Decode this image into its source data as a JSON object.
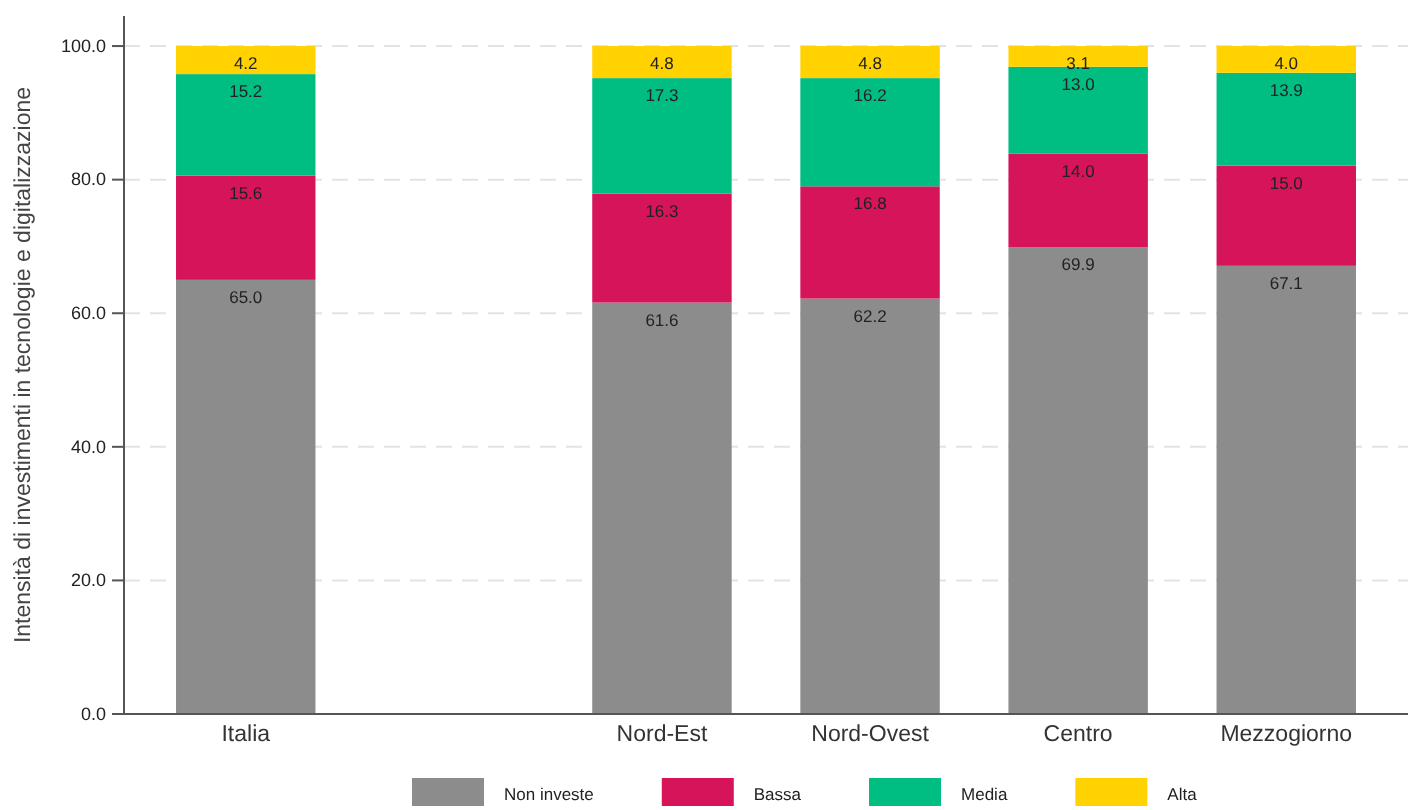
{
  "chart_data": {
    "type": "bar",
    "stacked": true,
    "ylabel": "Intensità di investimenti in tecnologie e digitalizzazione",
    "categories": [
      "Italia",
      null,
      "Nord-Est",
      "Nord-Ovest",
      "Centro",
      "Mezzogiorno"
    ],
    "series": [
      {
        "name": "Non investe",
        "color": "#8c8c8c",
        "values": [
          65.0,
          null,
          61.6,
          62.2,
          69.9,
          67.1
        ],
        "value_labels": [
          "65.0",
          null,
          "61.6",
          "62.2",
          "69.9",
          "67.1"
        ]
      },
      {
        "name": "Bassa",
        "color": "#d6145a",
        "values": [
          15.6,
          null,
          16.3,
          16.8,
          14.0,
          15.0
        ],
        "value_labels": [
          "15.6",
          null,
          "16.3",
          "16.8",
          "14.0",
          "15.0"
        ]
      },
      {
        "name": "Media",
        "color": "#00bd82",
        "values": [
          15.2,
          null,
          17.3,
          16.2,
          13.0,
          13.9
        ],
        "value_labels": [
          "15.2",
          null,
          "17.3",
          "16.2",
          "13.0",
          "13.9"
        ]
      },
      {
        "name": "Alta",
        "color": "#ffd200",
        "values": [
          4.2,
          null,
          4.8,
          4.8,
          3.1,
          4.0
        ],
        "value_labels": [
          "4.2",
          null,
          "4.8",
          "4.8",
          "3.1",
          "4.0"
        ]
      }
    ],
    "ylim": [
      0,
      104.5
    ],
    "yticks": [
      {
        "value": 0,
        "label": "0.0"
      },
      {
        "value": 20,
        "label": "20.0"
      },
      {
        "value": 40,
        "label": "40.0"
      },
      {
        "value": 60,
        "label": "60.0"
      },
      {
        "value": 80,
        "label": "80.0"
      },
      {
        "value": 100,
        "label": "100.0"
      }
    ],
    "grid": "y",
    "legend": "bottom"
  }
}
